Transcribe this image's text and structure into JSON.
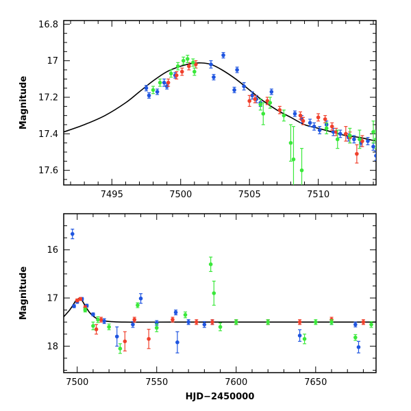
{
  "chart_data": [
    {
      "type": "scatter",
      "panel": "top",
      "title": "",
      "xlabel": "",
      "ylabel": "Magnitude",
      "xlim": [
        7491.5,
        7514.2
      ],
      "ylim": [
        17.68,
        16.78
      ],
      "y_inverted": true,
      "grid": false,
      "legend": "none",
      "xticks": [
        {
          "value": 7495,
          "label": "7495"
        },
        {
          "value": 7500,
          "label": "7500"
        },
        {
          "value": 7505,
          "label": "7505"
        },
        {
          "value": 7510,
          "label": "7510"
        }
      ],
      "yticks": [
        {
          "value": 16.8,
          "label": "16.8"
        },
        {
          "value": 17.0,
          "label": "17"
        },
        {
          "value": 17.2,
          "label": "17.2"
        },
        {
          "value": 17.4,
          "label": "17.4"
        },
        {
          "value": 17.6,
          "label": "17.6"
        }
      ],
      "model_curve": {
        "color": "#000000",
        "x": [
          7491.5,
          7493,
          7494.5,
          7496,
          7497,
          7498,
          7499,
          7500,
          7500.8,
          7501.5,
          7502.2,
          7503,
          7504,
          7505,
          7506,
          7507,
          7508,
          7509,
          7510,
          7511,
          7512,
          7513,
          7514.2
        ],
        "y": [
          17.39,
          17.35,
          17.3,
          17.23,
          17.17,
          17.11,
          17.06,
          17.03,
          17.015,
          17.012,
          17.02,
          17.05,
          17.1,
          17.16,
          17.22,
          17.27,
          17.31,
          17.35,
          17.37,
          17.39,
          17.41,
          17.42,
          17.44
        ]
      },
      "series": [
        {
          "color": "#1f55e0",
          "x": [
            7497.5,
            7497.7,
            7498.3,
            7498.8,
            7499.0,
            7499.6,
            7502.2,
            7502.4,
            7503.1,
            7503.9,
            7504.1,
            7504.6,
            7505.2,
            7505.5,
            7505.8,
            7506.6,
            7508.3,
            7508.8,
            7509.4,
            7509.7,
            7510.1,
            7510.6,
            7511.1,
            7511.6,
            7512.2,
            7512.6,
            7513.1,
            7513.6,
            7514.0,
            7514.2
          ],
          "y": [
            17.15,
            17.19,
            17.17,
            17.12,
            17.14,
            17.08,
            17.02,
            17.09,
            16.97,
            17.16,
            17.05,
            17.14,
            17.19,
            17.21,
            17.23,
            17.17,
            17.29,
            17.32,
            17.34,
            17.36,
            17.38,
            17.35,
            17.39,
            17.4,
            17.42,
            17.43,
            17.45,
            17.44,
            17.47,
            17.52
          ],
          "err": [
            0.015,
            0.015,
            0.015,
            0.02,
            0.015,
            0.015,
            0.02,
            0.015,
            0.015,
            0.015,
            0.015,
            0.02,
            0.02,
            0.02,
            0.02,
            0.015,
            0.015,
            0.02,
            0.02,
            0.02,
            0.02,
            0.02,
            0.02,
            0.02,
            0.02,
            0.02,
            0.02,
            0.02,
            0.02,
            0.025
          ]
        },
        {
          "color": "#f0402c",
          "x": [
            7499.1,
            7499.7,
            7500.1,
            7500.6,
            7501.1,
            7505.0,
            7505.4,
            7506.3,
            7507.2,
            7508.7,
            7508.9,
            7510.0,
            7510.5,
            7511.0,
            7511.3,
            7512.0,
            7512.3,
            7512.8,
            7513.2
          ],
          "y": [
            17.12,
            17.08,
            17.06,
            17.03,
            17.02,
            17.22,
            17.21,
            17.22,
            17.27,
            17.3,
            17.33,
            17.31,
            17.32,
            17.36,
            17.39,
            17.4,
            17.42,
            17.51,
            17.44
          ],
          "err": [
            0.02,
            0.02,
            0.02,
            0.02,
            0.02,
            0.03,
            0.02,
            0.02,
            0.02,
            0.02,
            0.02,
            0.02,
            0.02,
            0.02,
            0.02,
            0.04,
            0.03,
            0.05,
            0.03
          ]
        },
        {
          "color": "#3ae83a",
          "x": [
            7498.0,
            7498.5,
            7499.3,
            7499.8,
            7500.2,
            7500.5,
            7500.9,
            7501.0,
            7505.8,
            7506.0,
            7506.5,
            7507.5,
            7508.0,
            7508.2,
            7508.8,
            7510.6,
            7511.4,
            7512.3,
            7513.0,
            7514.0,
            7514.2
          ],
          "y": [
            17.16,
            17.12,
            17.07,
            17.03,
            17.0,
            16.99,
            17.01,
            17.06,
            17.24,
            17.29,
            17.23,
            17.3,
            17.45,
            17.54,
            17.6,
            17.37,
            17.43,
            17.41,
            17.43,
            17.39,
            17.43
          ],
          "err": [
            0.02,
            0.02,
            0.02,
            0.02,
            0.02,
            0.02,
            0.02,
            0.02,
            0.03,
            0.06,
            0.03,
            0.03,
            0.1,
            0.18,
            0.12,
            0.03,
            0.05,
            0.04,
            0.05,
            0.06,
            0.05
          ]
        }
      ]
    },
    {
      "type": "scatter",
      "panel": "bottom",
      "title": "",
      "xlabel": "HJD−2450000",
      "ylabel": "Magnitude",
      "xlim": [
        7491.5,
        7688
      ],
      "ylim": [
        18.55,
        15.25
      ],
      "y_inverted": true,
      "grid": false,
      "legend": "none",
      "xticks": [
        {
          "value": 7500,
          "label": "7500"
        },
        {
          "value": 7550,
          "label": "7550"
        },
        {
          "value": 7600,
          "label": "7600"
        },
        {
          "value": 7650,
          "label": "7650"
        }
      ],
      "yticks": [
        {
          "value": 16,
          "label": "16"
        },
        {
          "value": 17,
          "label": "17"
        },
        {
          "value": 18,
          "label": "18"
        }
      ],
      "model_curve": {
        "color": "#000000",
        "x": [
          7491.5,
          7495,
          7497.5,
          7499,
          7500.5,
          7501.5,
          7503,
          7505,
          7508,
          7512,
          7518,
          7530,
          7560,
          7600,
          7640,
          7688
        ],
        "y": [
          17.39,
          17.26,
          17.14,
          17.06,
          17.02,
          17.01,
          17.05,
          17.16,
          17.31,
          17.42,
          17.48,
          17.5,
          17.5,
          17.5,
          17.5,
          17.5
        ]
      },
      "series": [
        {
          "color": "#1f55e0",
          "x": [
            7497,
            7498,
            7500,
            7503,
            7506,
            7510,
            7517,
            7525,
            7535,
            7540,
            7550,
            7562,
            7563,
            7570,
            7580,
            7585,
            7600,
            7620,
            7640,
            7660,
            7675,
            7677
          ],
          "y": [
            15.67,
            17.17,
            17.08,
            17.02,
            17.16,
            17.34,
            17.48,
            17.8,
            17.55,
            17.01,
            17.52,
            17.3,
            17.92,
            17.5,
            17.55,
            17.5,
            17.5,
            17.5,
            17.78,
            17.5,
            17.55,
            18.02
          ],
          "err": [
            0.1,
            0.03,
            0.03,
            0.03,
            0.03,
            0.03,
            0.05,
            0.2,
            0.06,
            0.1,
            0.05,
            0.05,
            0.22,
            0.05,
            0.06,
            0.05,
            0.05,
            0.05,
            0.12,
            0.05,
            0.05,
            0.12
          ]
        },
        {
          "color": "#f0402c",
          "x": [
            7500,
            7502,
            7505,
            7512,
            7515,
            7530,
            7536,
            7545,
            7560,
            7575,
            7585,
            7600,
            7620,
            7640,
            7660,
            7680
          ],
          "y": [
            17.05,
            17.02,
            17.2,
            17.65,
            17.45,
            17.9,
            17.45,
            17.85,
            17.45,
            17.5,
            17.5,
            17.5,
            17.5,
            17.5,
            17.45,
            17.5
          ],
          "err": [
            0.03,
            0.03,
            0.04,
            0.1,
            0.05,
            0.2,
            0.05,
            0.2,
            0.05,
            0.05,
            0.05,
            0.05,
            0.05,
            0.05,
            0.05,
            0.05
          ]
        },
        {
          "color": "#3ae83a",
          "x": [
            7505,
            7510,
            7513,
            7520,
            7527,
            7538,
            7550,
            7568,
            7584,
            7586,
            7590,
            7600,
            7620,
            7643,
            7650,
            7660,
            7675,
            7685
          ],
          "y": [
            17.25,
            17.58,
            17.45,
            17.6,
            18.05,
            17.15,
            17.62,
            17.35,
            16.3,
            16.9,
            17.6,
            17.5,
            17.5,
            17.85,
            17.5,
            17.5,
            17.82,
            17.55
          ],
          "err": [
            0.04,
            0.08,
            0.06,
            0.06,
            0.1,
            0.05,
            0.08,
            0.06,
            0.15,
            0.25,
            0.08,
            0.05,
            0.05,
            0.1,
            0.05,
            0.05,
            0.06,
            0.06
          ]
        }
      ]
    }
  ]
}
